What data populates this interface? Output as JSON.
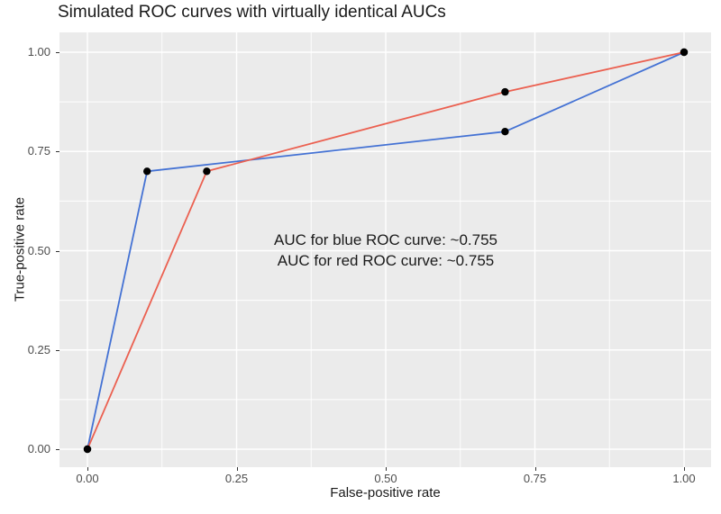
{
  "title": "Simulated ROC curves with virtually identical AUCs",
  "chart_data": {
    "type": "line",
    "title": "Simulated ROC curves with virtually identical AUCs",
    "xlabel": "False-positive rate",
    "ylabel": "True-positive rate",
    "xlim": [
      0,
      1
    ],
    "ylim": [
      0,
      1
    ],
    "x_tick_values": [
      0,
      0.25,
      0.5,
      0.75,
      1
    ],
    "x_tick_labels": [
      "0.00",
      "0.25",
      "0.50",
      "0.75",
      "1.00"
    ],
    "y_tick_values": [
      0,
      0.25,
      0.5,
      0.75,
      1
    ],
    "y_tick_labels": [
      "0.00",
      "0.25",
      "0.50",
      "0.75",
      "1.00"
    ],
    "minor_tick_values": [
      0.125,
      0.375,
      0.625,
      0.875
    ],
    "grid": true,
    "legend": "none",
    "series": [
      {
        "name": "blue ROC curve",
        "color": "#4472D4",
        "points": [
          [
            0,
            0
          ],
          [
            0.1,
            0.7
          ],
          [
            0.7,
            0.8
          ],
          [
            1,
            1
          ]
        ]
      },
      {
        "name": "red ROC curve",
        "color": "#EB6050",
        "points": [
          [
            0,
            0
          ],
          [
            0.2,
            0.7
          ],
          [
            0.7,
            0.9
          ],
          [
            1,
            1
          ]
        ]
      }
    ],
    "annotations": [
      {
        "x": 0.5,
        "y": 0.525,
        "text": "AUC for blue ROC curve: ~0.755"
      },
      {
        "x": 0.5,
        "y": 0.475,
        "text": "AUC for red ROC curve: ~0.755"
      }
    ],
    "colors": {
      "panel_bg": "#EBEBEB",
      "grid": "#FFFFFF",
      "tick_label": "#4D4D4D",
      "tick_mark": "#333333",
      "point": "#000000"
    }
  }
}
